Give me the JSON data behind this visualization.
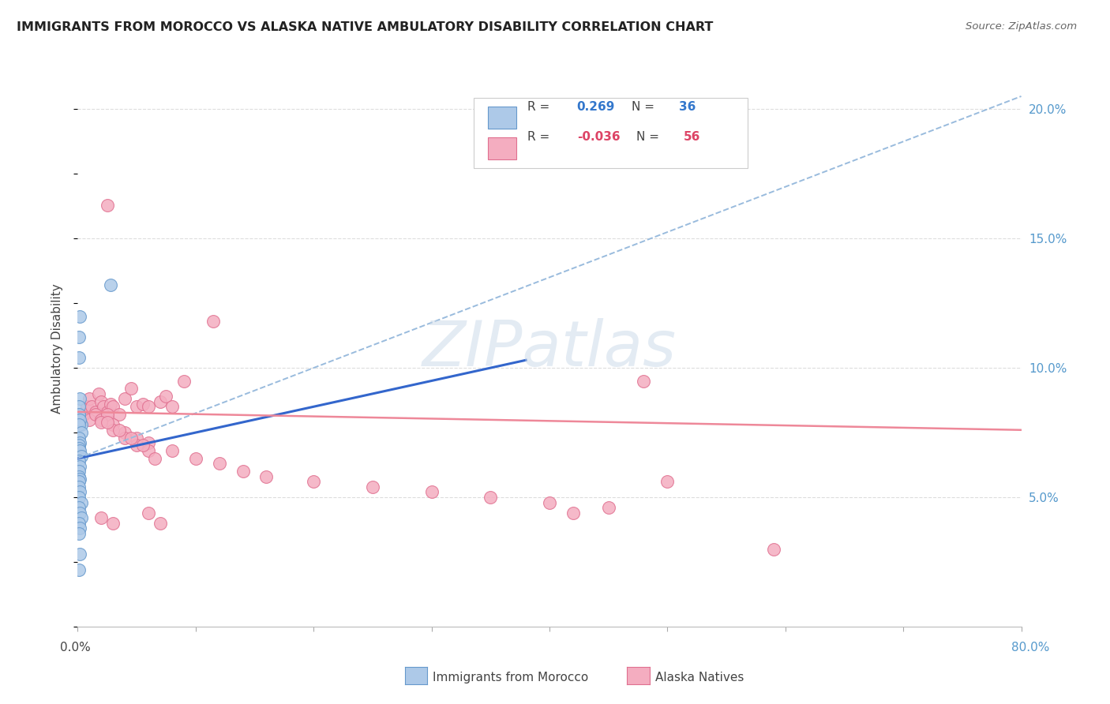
{
  "title": "IMMIGRANTS FROM MOROCCO VS ALASKA NATIVE AMBULATORY DISABILITY CORRELATION CHART",
  "source": "Source: ZipAtlas.com",
  "ylabel": "Ambulatory Disability",
  "right_yticklabels": [
    "5.0%",
    "10.0%",
    "15.0%",
    "20.0%"
  ],
  "right_yticks": [
    0.05,
    0.1,
    0.15,
    0.2
  ],
  "watermark": "ZIPatlas",
  "legend_line1_r": "0.269",
  "legend_line1_n": "36",
  "legend_line2_r": "-0.036",
  "legend_line2_n": "56",
  "morocco_color": "#adc9e8",
  "alaska_color": "#f4adc0",
  "morocco_edge": "#6699cc",
  "alaska_edge": "#e07090",
  "trend_blue_solid": "#3366cc",
  "trend_blue_dashed": "#99bbdd",
  "trend_pink": "#ee8899",
  "morocco_scatter_x": [
    0.001,
    0.002,
    0.001,
    0.003,
    0.001,
    0.002,
    0.001,
    0.001,
    0.002,
    0.001,
    0.003,
    0.001,
    0.002,
    0.001,
    0.001,
    0.002,
    0.003,
    0.001,
    0.002,
    0.001,
    0.001,
    0.002,
    0.001,
    0.001,
    0.002,
    0.001,
    0.003,
    0.001,
    0.002,
    0.003,
    0.001,
    0.002,
    0.001,
    0.002,
    0.001,
    0.028
  ],
  "morocco_scatter_y": [
    0.112,
    0.12,
    0.104,
    0.078,
    0.082,
    0.088,
    0.085,
    0.082,
    0.08,
    0.078,
    0.075,
    0.073,
    0.071,
    0.07,
    0.069,
    0.068,
    0.066,
    0.064,
    0.062,
    0.06,
    0.058,
    0.057,
    0.056,
    0.054,
    0.052,
    0.05,
    0.048,
    0.046,
    0.044,
    0.042,
    0.04,
    0.038,
    0.036,
    0.028,
    0.022,
    0.132
  ],
  "alaska_scatter_x": [
    0.005,
    0.008,
    0.01,
    0.012,
    0.015,
    0.018,
    0.02,
    0.022,
    0.025,
    0.028,
    0.03,
    0.035,
    0.04,
    0.045,
    0.05,
    0.055,
    0.06,
    0.07,
    0.075,
    0.08,
    0.01,
    0.015,
    0.02,
    0.025,
    0.03,
    0.04,
    0.05,
    0.06,
    0.08,
    0.1,
    0.12,
    0.14,
    0.16,
    0.2,
    0.25,
    0.3,
    0.35,
    0.4,
    0.45,
    0.5,
    0.02,
    0.03,
    0.04,
    0.05,
    0.06,
    0.025,
    0.035,
    0.045,
    0.055,
    0.065,
    0.42,
    0.02,
    0.03,
    0.06,
    0.59,
    0.07
  ],
  "alaska_scatter_y": [
    0.082,
    0.085,
    0.088,
    0.085,
    0.083,
    0.09,
    0.087,
    0.085,
    0.083,
    0.086,
    0.085,
    0.082,
    0.088,
    0.092,
    0.085,
    0.086,
    0.085,
    0.087,
    0.089,
    0.085,
    0.08,
    0.082,
    0.08,
    0.082,
    0.078,
    0.075,
    0.073,
    0.071,
    0.068,
    0.065,
    0.063,
    0.06,
    0.058,
    0.056,
    0.054,
    0.052,
    0.05,
    0.048,
    0.046,
    0.056,
    0.079,
    0.076,
    0.073,
    0.07,
    0.068,
    0.079,
    0.076,
    0.073,
    0.07,
    0.065,
    0.044,
    0.042,
    0.04,
    0.044,
    0.03,
    0.04
  ],
  "alaska_scatter_y_outliers": [
    [
      0.025,
      0.163
    ],
    [
      0.115,
      0.118
    ],
    [
      0.09,
      0.095
    ],
    [
      0.48,
      0.095
    ]
  ],
  "xlim": [
    0.0,
    0.8
  ],
  "ylim": [
    0.0,
    0.215
  ],
  "trend_blue_x0": 0.0,
  "trend_blue_y0": 0.065,
  "trend_blue_x1": 0.38,
  "trend_blue_y1": 0.103,
  "trend_dash_x0": 0.0,
  "trend_dash_y0": 0.065,
  "trend_dash_x1": 0.8,
  "trend_dash_y1": 0.205,
  "trend_pink_x0": 0.0,
  "trend_pink_y0": 0.083,
  "trend_pink_x1": 0.8,
  "trend_pink_y1": 0.076,
  "grid_color": "#dddddd",
  "background_color": "#ffffff"
}
